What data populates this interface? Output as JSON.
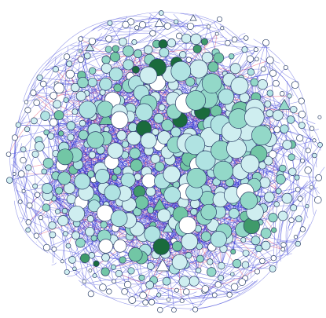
{
  "graph": {
    "layout": "force-directed",
    "node_shapes": [
      "circle",
      "triangle"
    ],
    "node_color_scale": [
      "#ffffff",
      "#cfeef0",
      "#b0e3e2",
      "#93d8c8",
      "#72c6a5",
      "#3f9a6a",
      "#1a6b3c"
    ],
    "node_stroke_color": "#2a3f66",
    "edge_colors": {
      "primary": "#2f35d6",
      "secondary": "#e53a5a"
    },
    "background": "#ffffff"
  }
}
